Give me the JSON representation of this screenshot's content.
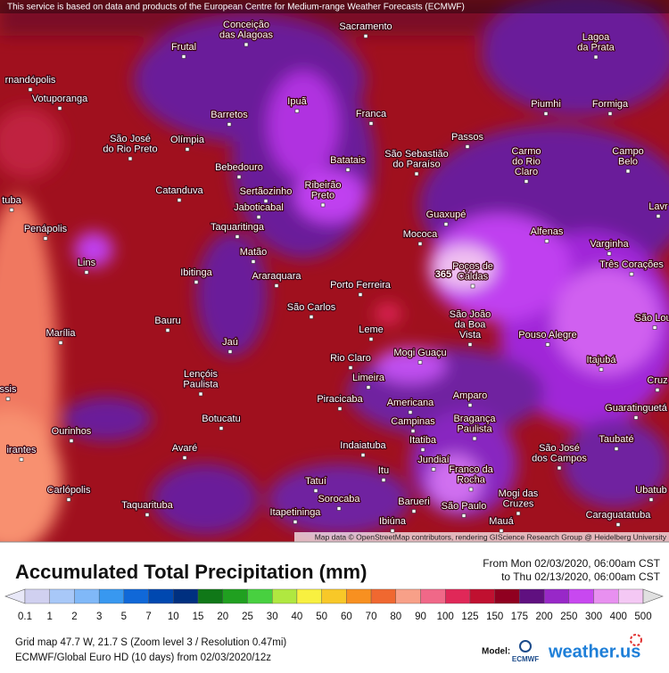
{
  "attribution_top": "This service is based on data and products of the European Centre for Medium-range Weather Forecasts (ECMWF)",
  "attribution_bottom": "Map data © OpenStreetMap contributors, rendering GIScience Research Group @ Heidelberg University",
  "max_marker": "365",
  "cities": [
    [
      "Conceição",
      "das Alagoas"
    ],
    [
      "Sacramento"
    ],
    [
      "Lagoa",
      "da Prata"
    ],
    [
      "Frutal"
    ],
    [
      "rnandópolis"
    ],
    [
      "Votuporanga"
    ],
    [
      "Ipuã"
    ],
    [
      "Barretos"
    ],
    [
      "Franca"
    ],
    [
      "Piumhi"
    ],
    [
      "Formiga"
    ],
    [
      "São José",
      "do Rio Preto"
    ],
    [
      "Olímpia"
    ],
    [
      "Passos"
    ],
    [
      "São Sebastião",
      "do Paraíso"
    ],
    [
      "Carmo",
      "do Rio",
      "Claro"
    ],
    [
      "Campo",
      "Belo"
    ],
    [
      "Batatais"
    ],
    [
      "Bebedouro"
    ],
    [
      "Ribeirão",
      "Preto"
    ],
    [
      "Catanduva"
    ],
    [
      "Sertãozinho"
    ],
    [
      "tuba"
    ],
    [
      "Jaboticabal"
    ],
    [
      "Guaxupé"
    ],
    [
      "Lavr"
    ],
    [
      "Penápolis"
    ],
    [
      "Taquaritinga"
    ],
    [
      "Mococa"
    ],
    [
      "Alfenas"
    ],
    [
      "Varginha"
    ],
    [
      "Três Corações"
    ],
    [
      "Lins"
    ],
    [
      "Matão"
    ],
    [
      "Poços de",
      "Caldas"
    ],
    [
      "Ibitinga"
    ],
    [
      "Araraquara"
    ],
    [
      "Porto Ferreira"
    ],
    [
      "São Carlos"
    ],
    [
      "São João",
      "da Boa",
      "Vista"
    ],
    [
      "São Lour"
    ],
    [
      "Marília"
    ],
    [
      "Leme"
    ],
    [
      "Pouso Alegre"
    ],
    [
      "Bauru"
    ],
    [
      "Jaú"
    ],
    [
      "Rio Claro"
    ],
    [
      "Mogi Guaçu"
    ],
    [
      "Itajubá"
    ],
    [
      "Lençóis",
      "Paulista"
    ],
    [
      "Limeira"
    ],
    [
      "Cruz"
    ],
    [
      "ssis"
    ],
    [
      "Piracicaba"
    ],
    [
      "Americana"
    ],
    [
      "Amparo"
    ],
    [
      "Guaratinguetá"
    ],
    [
      "Botucatu"
    ],
    [
      "Campinas"
    ],
    [
      "Bragança",
      "Paulista"
    ],
    [
      "Ourinhos"
    ],
    [
      "Itatiba"
    ],
    [
      "Taubaté"
    ],
    [
      "irantes"
    ],
    [
      "Indaiatuba"
    ],
    [
      "Avaré"
    ],
    [
      "São José",
      "dos Campos"
    ],
    [
      "Jundiaí"
    ],
    [
      "Itu"
    ],
    [
      "Franco da",
      "Rocha"
    ],
    [
      "Tatuí"
    ],
    [
      "Carlópolis"
    ],
    [
      "Ubatub"
    ],
    [
      "Mogi das",
      "Cruzes"
    ],
    [
      "Sorocaba"
    ],
    [
      "Barueri"
    ],
    [
      "São Paulo"
    ],
    [
      "Taquarituba"
    ],
    [
      "Itapetininga"
    ],
    [
      "Caraguatatuba"
    ],
    [
      "Mauá"
    ],
    [
      "Ibiúna"
    ]
  ],
  "footer": {
    "title": "Accumulated Total Precipitation (mm)",
    "from": "From Mon 02/03/2020, 06:00am CST",
    "to": "to Thu 02/13/2020, 06:00am CST",
    "grid_info": "Grid map 47.7 W, 21.7 S (Zoom level 3 / Resolution 0.47mi)",
    "model_info": "ECMWF/Global Euro HD (10 days)  from  02/03/2020/12z",
    "model_label": "Model:",
    "ecmwf": "ECMWF",
    "brand": "weather.us"
  },
  "legend": {
    "labels": [
      "0.1",
      "1",
      "2",
      "3",
      "5",
      "7",
      "10",
      "15",
      "20",
      "25",
      "30",
      "40",
      "50",
      "60",
      "70",
      "80",
      "90",
      "100",
      "125",
      "150",
      "175",
      "200",
      "250",
      "300",
      "400",
      "500"
    ],
    "colors": [
      "#e8e8f8",
      "#d0d0f0",
      "#a8c8f8",
      "#80b8f8",
      "#3898f0",
      "#1068d8",
      "#0048b0",
      "#003080",
      "#107818",
      "#20a020",
      "#48d040",
      "#b0e840",
      "#f8f040",
      "#f8c828",
      "#f89020",
      "#f06830",
      "#f8a088",
      "#f06888",
      "#e02858",
      "#c01030",
      "#900020",
      "#601080",
      "#9828c8",
      "#c848f0",
      "#e890f0",
      "#f4c8f4",
      "#c8c8c8",
      "#e0e0e0"
    ]
  }
}
